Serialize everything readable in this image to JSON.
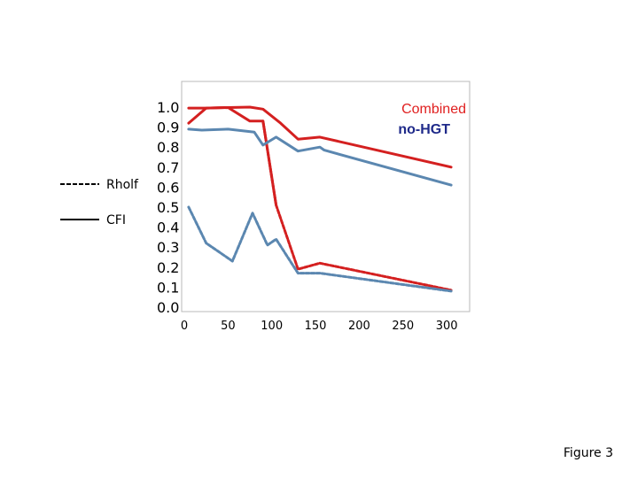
{
  "chart_data": {
    "type": "line",
    "xlim": [
      0,
      310
    ],
    "ylim": [
      0,
      1.0
    ],
    "x_ticks": [
      0,
      50,
      100,
      150,
      200,
      250,
      300
    ],
    "x_tick_labels": [
      "0",
      "50",
      "100",
      "150",
      "200",
      "250",
      "300"
    ],
    "y_ticks": [
      0,
      0.1,
      0.2,
      0.3,
      0.4,
      0.5,
      0.6,
      0.7,
      0.8,
      0.9,
      1.0
    ],
    "y_tick_labels": [
      "0.0",
      "0.1",
      "0.2",
      "0.3",
      "0.4",
      "0.5",
      "0.6",
      "0.7",
      "0.8",
      "0.9",
      "1.0"
    ],
    "grid": false,
    "legend": {
      "placement": "left",
      "entries": [
        {
          "label": "Rholf",
          "line_style": "dashed"
        },
        {
          "label": "CFI",
          "line_style": "solid"
        }
      ]
    },
    "series_labels": [
      {
        "text": "Combined",
        "color": "#e02020"
      },
      {
        "text": "no-HGT",
        "color": "#1f2a8a"
      }
    ],
    "series": [
      {
        "color": "#d42020",
        "line_style": "solid",
        "points": [
          [
            5,
            0.92
          ],
          [
            25,
            0.995
          ],
          [
            50,
            0.998
          ],
          [
            75,
            1.0
          ],
          [
            90,
            0.99
          ],
          [
            110,
            0.92
          ],
          [
            130,
            0.84
          ],
          [
            155,
            0.85
          ],
          [
            305,
            0.7
          ]
        ]
      },
      {
        "color": "#d42020",
        "line_style": "solid",
        "points": [
          [
            5,
            0.995
          ],
          [
            25,
            0.995
          ],
          [
            50,
            0.998
          ],
          [
            75,
            0.93
          ],
          [
            90,
            0.93
          ],
          [
            105,
            0.51
          ]
        ]
      },
      {
        "color": "#d42020",
        "line_style": "dashed",
        "points": [
          [
            90,
            0.93
          ],
          [
            105,
            0.51
          ],
          [
            130,
            0.19
          ],
          [
            155,
            0.22
          ],
          [
            305,
            0.085
          ]
        ]
      },
      {
        "color": "#5b87b0",
        "line_style": "solid",
        "points": [
          [
            5,
            0.89
          ],
          [
            20,
            0.885
          ],
          [
            50,
            0.89
          ],
          [
            80,
            0.875
          ],
          [
            90,
            0.81
          ],
          [
            105,
            0.85
          ],
          [
            130,
            0.78
          ],
          [
            155,
            0.8
          ],
          [
            160,
            0.785
          ],
          [
            305,
            0.61
          ]
        ]
      },
      {
        "color": "#5b87b0",
        "line_style": "dashed",
        "points": [
          [
            5,
            0.5
          ],
          [
            25,
            0.32
          ],
          [
            55,
            0.23
          ],
          [
            78,
            0.47
          ],
          [
            95,
            0.31
          ],
          [
            105,
            0.34
          ],
          [
            130,
            0.17
          ],
          [
            155,
            0.17
          ],
          [
            305,
            0.08
          ]
        ]
      }
    ]
  },
  "caption": "Figure 3"
}
